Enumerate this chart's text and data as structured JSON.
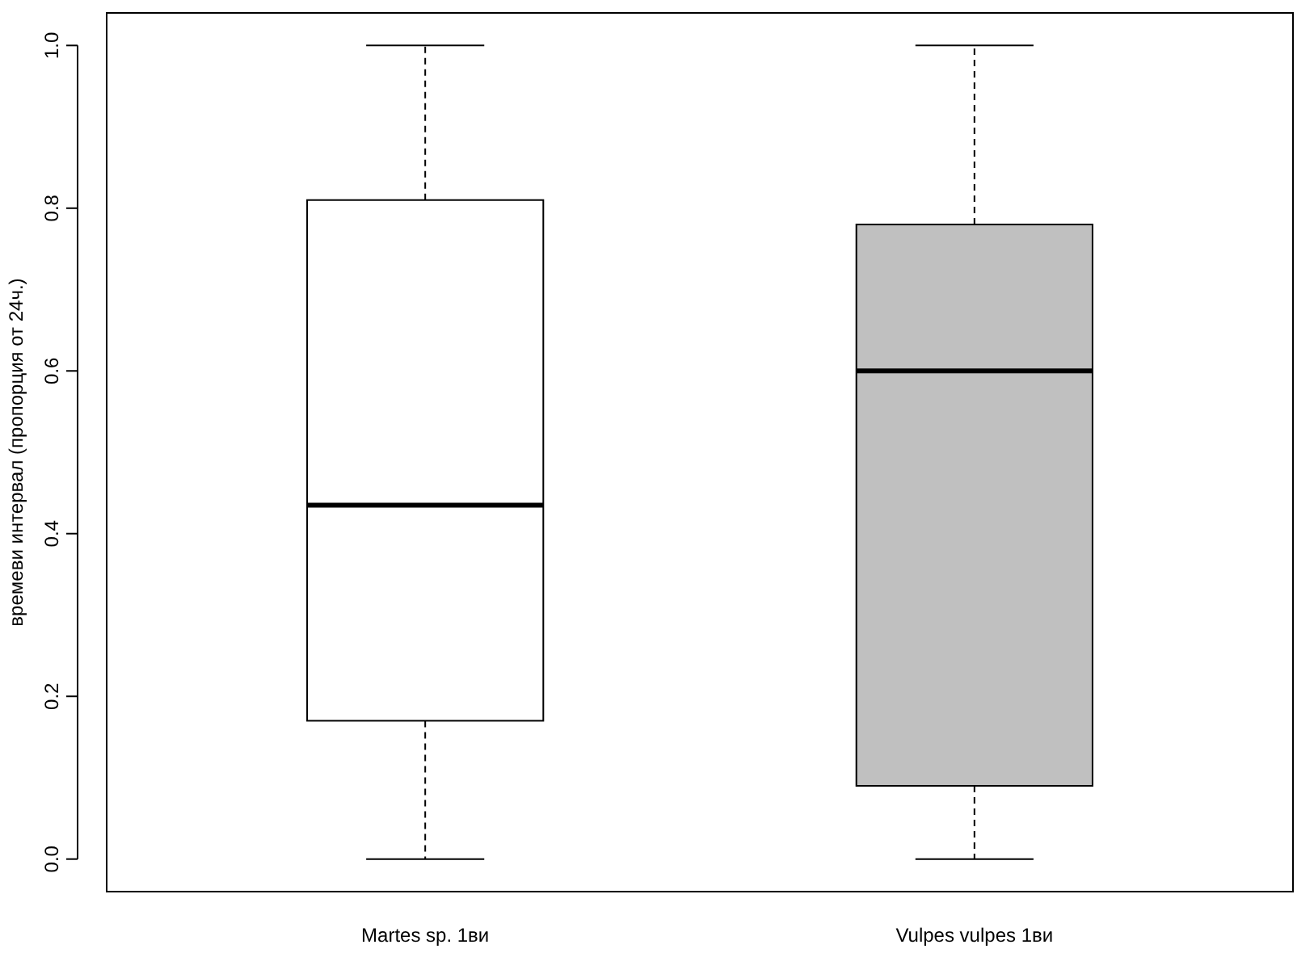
{
  "chart_data": {
    "type": "box",
    "ylabel": "времеви интервал (пропорция от 24ч.)",
    "categories": [
      "Martes sp. 1ви",
      "Vulpes vulpes 1ви"
    ],
    "colors": [
      "#ffffff",
      "#c0c0c0"
    ],
    "boxes": [
      {
        "low": 0,
        "q1": 0.17,
        "median": 0.435,
        "q3": 0.81,
        "high": 1
      },
      {
        "low": 0,
        "q1": 0.09,
        "median": 0.6,
        "q3": 0.78,
        "high": 1
      }
    ],
    "ylim": [
      0,
      1
    ],
    "yticks": [
      {
        "value": 0,
        "label": "0.0"
      },
      {
        "value": 0.2,
        "label": "0.2"
      },
      {
        "value": 0.4,
        "label": "0.4"
      },
      {
        "value": 0.6,
        "label": "0.6"
      },
      {
        "value": 0.8,
        "label": "0.8"
      },
      {
        "value": 1,
        "label": "1.0"
      }
    ],
    "grid": false
  }
}
